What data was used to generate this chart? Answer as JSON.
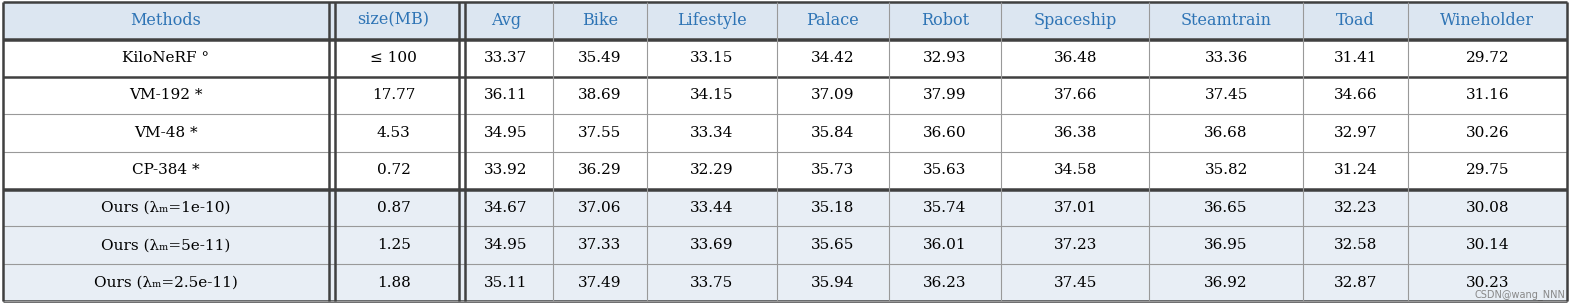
{
  "columns": [
    "Methods",
    "size(MB)",
    "Avg",
    "Bike",
    "Lifestyle",
    "Palace",
    "Robot",
    "Spaceship",
    "Steamtrain",
    "Toad",
    "Wineholder"
  ],
  "rows": [
    [
      "KiloNeRF °",
      "≤ 100",
      "33.37",
      "35.49",
      "33.15",
      "34.42",
      "32.93",
      "36.48",
      "33.36",
      "31.41",
      "29.72"
    ],
    [
      "VM-192 *",
      "17.77",
      "36.11",
      "38.69",
      "34.15",
      "37.09",
      "37.99",
      "37.66",
      "37.45",
      "34.66",
      "31.16"
    ],
    [
      "VM-48 *",
      "4.53",
      "34.95",
      "37.55",
      "33.34",
      "35.84",
      "36.60",
      "36.38",
      "36.68",
      "32.97",
      "30.26"
    ],
    [
      "CP-384 *",
      "0.72",
      "33.92",
      "36.29",
      "32.29",
      "35.73",
      "35.63",
      "34.58",
      "35.82",
      "31.24",
      "29.75"
    ],
    [
      "Ours (λₘ=1e-10)",
      "0.87",
      "34.67",
      "37.06",
      "33.44",
      "35.18",
      "35.74",
      "37.01",
      "36.65",
      "32.23",
      "30.08"
    ],
    [
      "Ours (λₘ=5e-11)",
      "1.25",
      "34.95",
      "37.33",
      "33.69",
      "35.65",
      "36.01",
      "37.23",
      "36.95",
      "32.58",
      "30.14"
    ],
    [
      "Ours (λₘ=2.5e-11)",
      "1.88",
      "35.11",
      "37.49",
      "33.75",
      "35.94",
      "36.23",
      "37.45",
      "36.92",
      "32.87",
      "30.23"
    ]
  ],
  "col_widths_raw": [
    1.8,
    0.72,
    0.52,
    0.52,
    0.72,
    0.62,
    0.62,
    0.82,
    0.85,
    0.58,
    0.88
  ],
  "header_bg": "#dce6f1",
  "ours_bg": "#e8eef5",
  "row_bg": "#ffffff",
  "header_text_color": "#2e74b5",
  "data_text_color": "#000000",
  "thin_color": "#999999",
  "thick_color": "#404040",
  "figsize": [
    15.7,
    3.03
  ],
  "dpi": 100,
  "font_size": 11.0,
  "header_font_size": 11.5,
  "watermark": "CSDN@wang_NNN"
}
